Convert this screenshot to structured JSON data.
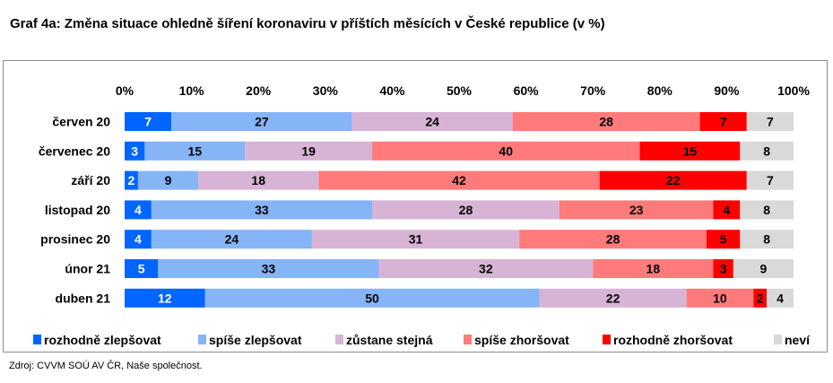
{
  "title": "Graf 4a: Změna situace ohledně šíření koronaviru v příštích měsících v České republice (v %)",
  "source": "Zdroj: CVVM SOÚ AV ČR, Naše společnost.",
  "chart_data": {
    "type": "bar",
    "orientation": "horizontal",
    "stacked": true,
    "categories": [
      "červen 20",
      "červenec 20",
      "září 20",
      "listopad 20",
      "prosinec 20",
      "únor 21",
      "duben 21"
    ],
    "x_ticks": [
      "0%",
      "10%",
      "20%",
      "30%",
      "40%",
      "50%",
      "60%",
      "70%",
      "80%",
      "90%",
      "100%"
    ],
    "xlim": [
      0,
      100
    ],
    "axis_position": "top",
    "grid": false,
    "legend_position": "bottom",
    "series": [
      {
        "name": "rozhodně zlepšovat",
        "color": "#0066ff",
        "values": [
          7,
          3,
          2,
          4,
          4,
          5,
          12
        ]
      },
      {
        "name": "spíše zlepšovat",
        "color": "#85b4f7",
        "values": [
          27,
          15,
          9,
          33,
          24,
          33,
          50
        ]
      },
      {
        "name": "zůstane stejná",
        "color": "#d7b4d6",
        "values": [
          24,
          19,
          18,
          28,
          31,
          32,
          22
        ]
      },
      {
        "name": "spíše zhoršovat",
        "color": "#ff7a7a",
        "values": [
          28,
          40,
          42,
          23,
          28,
          18,
          10
        ]
      },
      {
        "name": "rozhodně zhoršovat",
        "color": "#ff0000",
        "values": [
          7,
          15,
          22,
          4,
          5,
          3,
          2
        ]
      },
      {
        "name": "neví",
        "color": "#d9d9d9",
        "values": [
          7,
          8,
          7,
          8,
          8,
          9,
          4
        ]
      }
    ]
  }
}
